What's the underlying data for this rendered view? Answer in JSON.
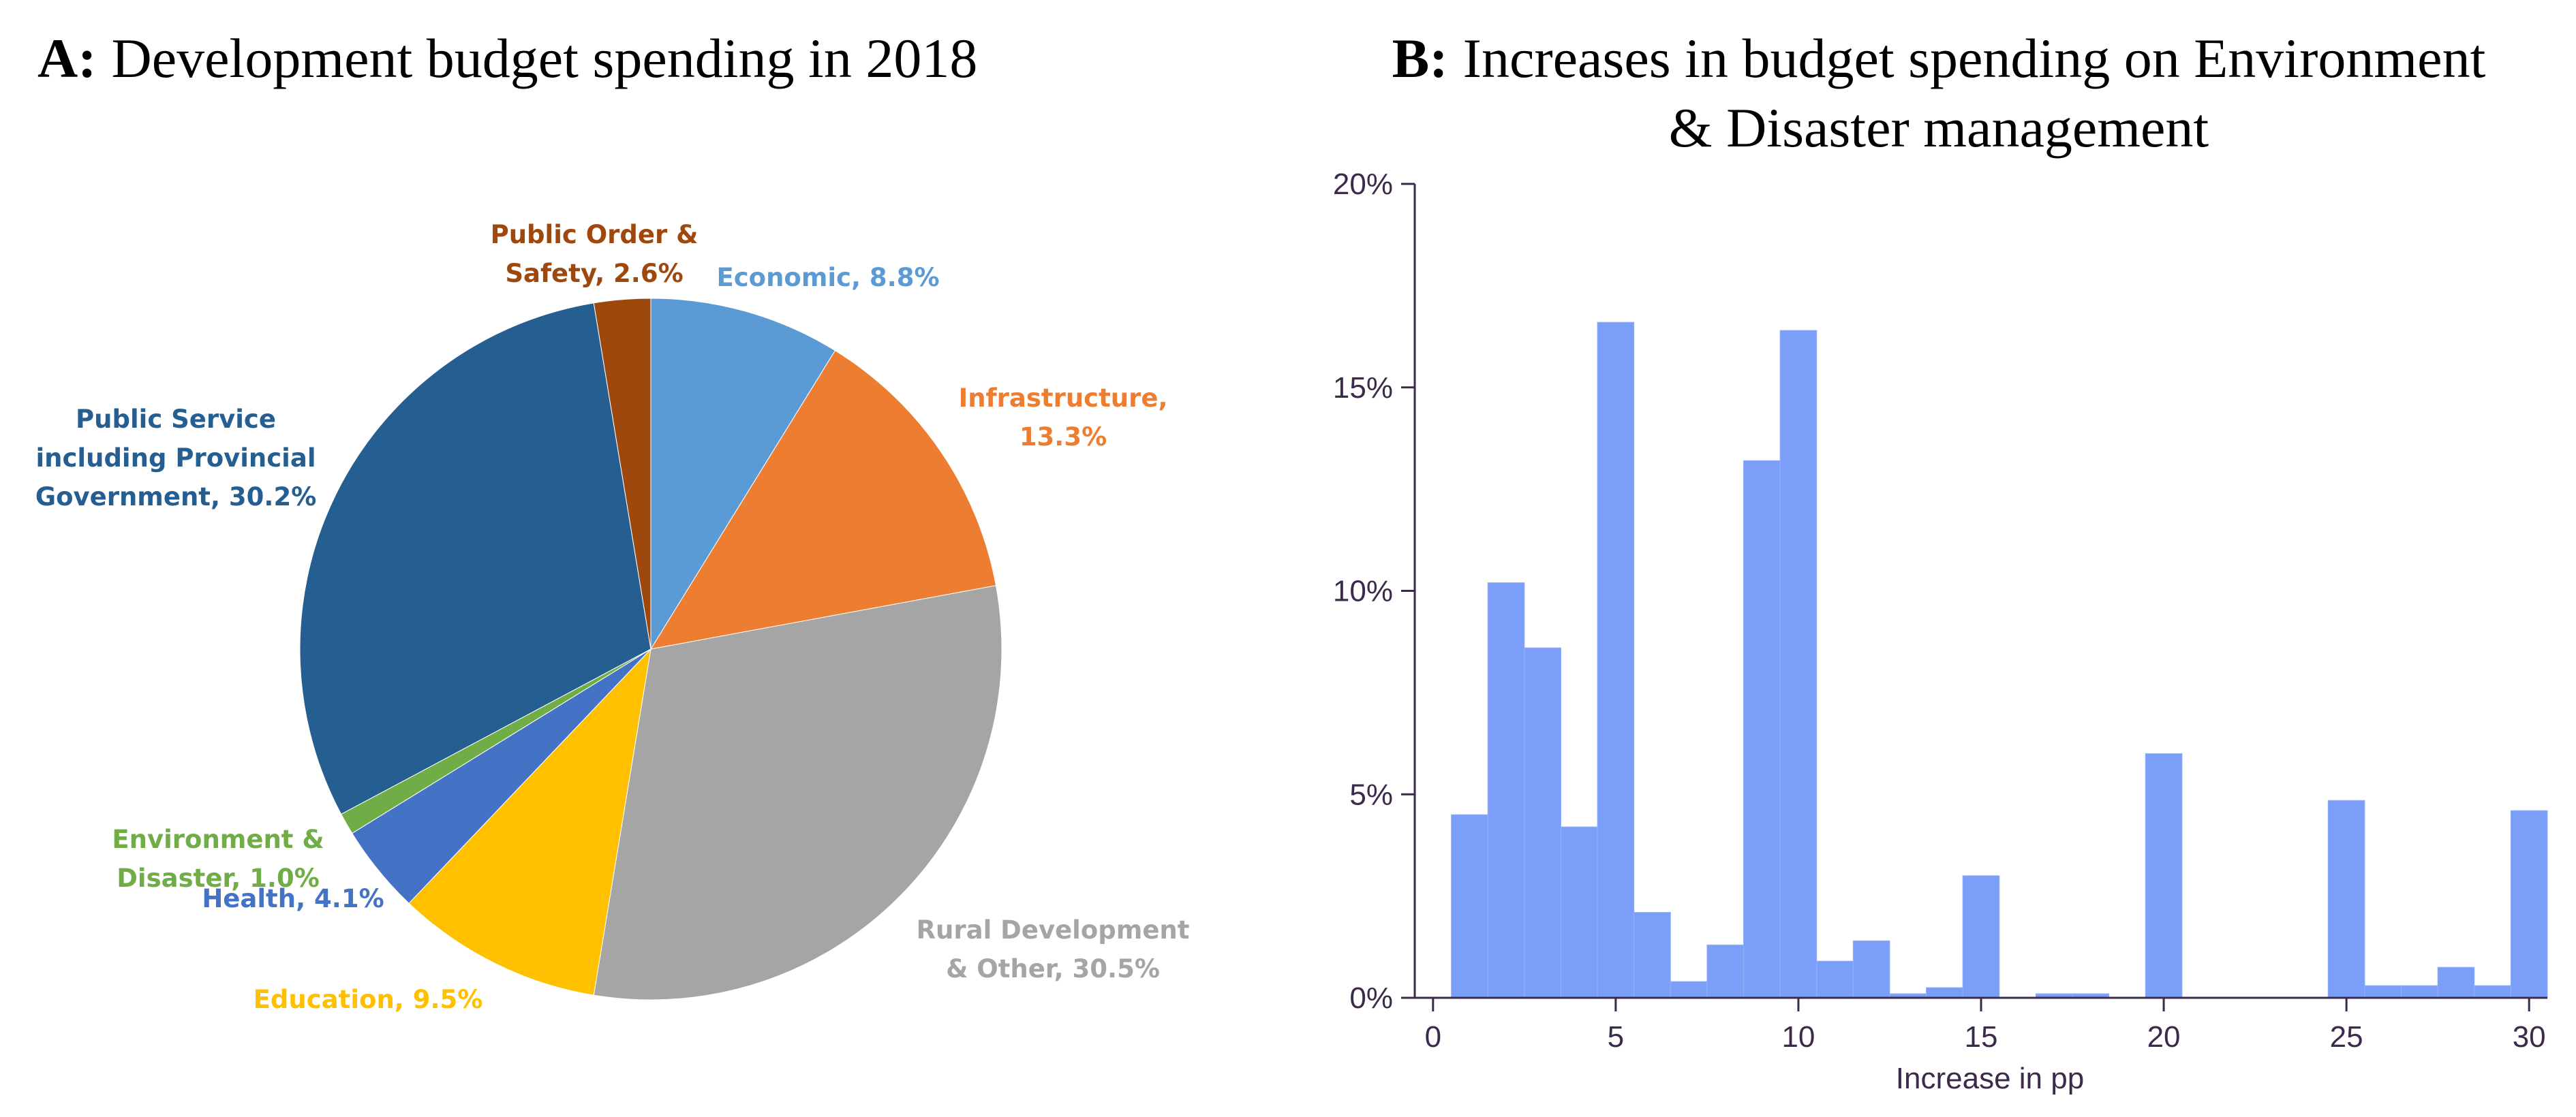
{
  "chart_data": [
    {
      "type": "pie",
      "title_prefix": "A:",
      "title": "Development budget spending in 2018",
      "slices": [
        {
          "label_lines": [
            "Economic, 8.8%"
          ],
          "value": 8.8,
          "color": "#5b9bd5"
        },
        {
          "label_lines": [
            "Infrastructure,",
            "13.3%"
          ],
          "value": 13.3,
          "color": "#ed7d31"
        },
        {
          "label_lines": [
            "Rural Development",
            "& Other, 30.5%"
          ],
          "value": 30.5,
          "color": "#a5a5a5"
        },
        {
          "label_lines": [
            "Education, 9.5%"
          ],
          "value": 9.5,
          "color": "#ffc000"
        },
        {
          "label_lines": [
            "Health, 4.1%"
          ],
          "value": 4.1,
          "color": "#4472c4"
        },
        {
          "label_lines": [
            "Environment &",
            "Disaster, 1.0%"
          ],
          "value": 1.0,
          "color": "#70ad47"
        },
        {
          "label_lines": [
            "Public Service",
            "including Provincial",
            "Government, 30.2%"
          ],
          "value": 30.2,
          "color": "#255e91"
        },
        {
          "label_lines": [
            "Public Order &",
            "Safety, 2.6%"
          ],
          "value": 2.6,
          "color": "#9e480e"
        }
      ]
    },
    {
      "type": "bar",
      "subtype": "histogram",
      "title_prefix": "B:",
      "title_lines": [
        "Increases in budget spending on Environment",
        "& Disaster management"
      ],
      "xlabel": "Increase in pp",
      "ylabel": "",
      "xlim": [
        -0.5,
        30.5
      ],
      "ylim": [
        0,
        20
      ],
      "xticks": [
        0,
        5,
        10,
        15,
        20,
        25,
        30
      ],
      "yticks": [
        0,
        5,
        10,
        15,
        20
      ],
      "ytick_labels": [
        "0%",
        "5%",
        "10%",
        "15%",
        "20%"
      ],
      "bar_color": "#7b9ff9",
      "bins": [
        {
          "x0": 0.5,
          "x1": 1.5,
          "value": 4.5
        },
        {
          "x0": 1.5,
          "x1": 2.5,
          "value": 10.2
        },
        {
          "x0": 2.5,
          "x1": 3.5,
          "value": 8.6
        },
        {
          "x0": 3.5,
          "x1": 4.5,
          "value": 4.2
        },
        {
          "x0": 4.5,
          "x1": 5.5,
          "value": 16.6
        },
        {
          "x0": 5.5,
          "x1": 6.5,
          "value": 2.1
        },
        {
          "x0": 6.5,
          "x1": 7.5,
          "value": 0.4
        },
        {
          "x0": 7.5,
          "x1": 8.5,
          "value": 1.3
        },
        {
          "x0": 8.5,
          "x1": 9.5,
          "value": 13.2
        },
        {
          "x0": 9.5,
          "x1": 10.5,
          "value": 16.4
        },
        {
          "x0": 10.5,
          "x1": 11.5,
          "value": 0.9
        },
        {
          "x0": 11.5,
          "x1": 12.5,
          "value": 1.4
        },
        {
          "x0": 12.5,
          "x1": 13.5,
          "value": 0.1
        },
        {
          "x0": 13.5,
          "x1": 14.5,
          "value": 0.25
        },
        {
          "x0": 14.5,
          "x1": 15.5,
          "value": 3.0
        },
        {
          "x0": 16.5,
          "x1": 17.5,
          "value": 0.1
        },
        {
          "x0": 17.5,
          "x1": 18.5,
          "value": 0.1
        },
        {
          "x0": 19.5,
          "x1": 20.5,
          "value": 6.0
        },
        {
          "x0": 24.5,
          "x1": 25.5,
          "value": 4.85
        },
        {
          "x0": 25.5,
          "x1": 26.5,
          "value": 0.3
        },
        {
          "x0": 26.5,
          "x1": 27.5,
          "value": 0.3
        },
        {
          "x0": 27.5,
          "x1": 28.5,
          "value": 0.75
        },
        {
          "x0": 28.5,
          "x1": 29.5,
          "value": 0.3
        },
        {
          "x0": 29.5,
          "x1": 30.5,
          "value": 4.6
        }
      ]
    }
  ]
}
